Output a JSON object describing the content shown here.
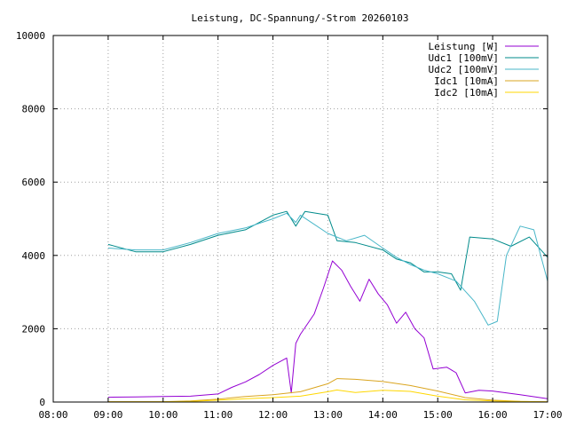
{
  "chart_data": {
    "type": "line",
    "title": "Leistung, DC-Spannung/-Strom 20260103",
    "xlabel": "",
    "ylabel": "",
    "x_range": [
      "08:00",
      "17:00"
    ],
    "ylim": [
      0,
      10000
    ],
    "x_ticks": [
      "08:00",
      "09:00",
      "10:00",
      "11:00",
      "12:00",
      "13:00",
      "14:00",
      "15:00",
      "16:00",
      "17:00"
    ],
    "y_ticks": [
      0,
      2000,
      4000,
      6000,
      8000,
      10000
    ],
    "grid": true,
    "legend_position": "top-right",
    "series": [
      {
        "name": "Leistung [W]",
        "color": "#9400d3",
        "points": [
          [
            "09:00",
            130
          ],
          [
            "09:30",
            140
          ],
          [
            "10:00",
            150
          ],
          [
            "10:30",
            160
          ],
          [
            "11:00",
            220
          ],
          [
            "11:15",
            400
          ],
          [
            "11:30",
            550
          ],
          [
            "11:45",
            750
          ],
          [
            "12:00",
            1000
          ],
          [
            "12:15",
            1200
          ],
          [
            "12:20",
            250
          ],
          [
            "12:25",
            1600
          ],
          [
            "12:30",
            1850
          ],
          [
            "12:45",
            2400
          ],
          [
            "12:55",
            3100
          ],
          [
            "13:05",
            3850
          ],
          [
            "13:15",
            3600
          ],
          [
            "13:25",
            3150
          ],
          [
            "13:35",
            2750
          ],
          [
            "13:45",
            3350
          ],
          [
            "13:55",
            2950
          ],
          [
            "14:05",
            2650
          ],
          [
            "14:15",
            2150
          ],
          [
            "14:25",
            2450
          ],
          [
            "14:35",
            2000
          ],
          [
            "14:45",
            1750
          ],
          [
            "14:55",
            900
          ],
          [
            "15:10",
            950
          ],
          [
            "15:20",
            800
          ],
          [
            "15:30",
            250
          ],
          [
            "15:45",
            320
          ],
          [
            "16:00",
            300
          ],
          [
            "16:30",
            200
          ],
          [
            "17:00",
            90
          ]
        ]
      },
      {
        "name": "Udc1 [100mV]",
        "color": "#008b8b",
        "points": [
          [
            "09:00",
            4300
          ],
          [
            "09:30",
            4100
          ],
          [
            "10:00",
            4100
          ],
          [
            "10:30",
            4300
          ],
          [
            "11:00",
            4550
          ],
          [
            "11:30",
            4700
          ],
          [
            "12:00",
            5100
          ],
          [
            "12:15",
            5200
          ],
          [
            "12:25",
            4800
          ],
          [
            "12:35",
            5200
          ],
          [
            "13:00",
            5100
          ],
          [
            "13:10",
            4400
          ],
          [
            "13:30",
            4350
          ],
          [
            "14:00",
            4150
          ],
          [
            "14:15",
            3900
          ],
          [
            "14:30",
            3800
          ],
          [
            "14:45",
            3550
          ],
          [
            "15:00",
            3550
          ],
          [
            "15:15",
            3500
          ],
          [
            "15:25",
            3050
          ],
          [
            "15:35",
            4500
          ],
          [
            "16:00",
            4450
          ],
          [
            "16:20",
            4250
          ],
          [
            "16:40",
            4500
          ],
          [
            "17:00",
            3950
          ]
        ]
      },
      {
        "name": "Udc2 [100mV]",
        "color": "#48b6c8",
        "points": [
          [
            "09:00",
            4200
          ],
          [
            "09:30",
            4150
          ],
          [
            "10:00",
            4150
          ],
          [
            "10:30",
            4350
          ],
          [
            "11:00",
            4600
          ],
          [
            "11:30",
            4750
          ],
          [
            "12:00",
            5000
          ],
          [
            "12:15",
            5150
          ],
          [
            "12:25",
            4900
          ],
          [
            "12:30",
            5100
          ],
          [
            "13:00",
            4600
          ],
          [
            "13:20",
            4400
          ],
          [
            "13:40",
            4550
          ],
          [
            "14:00",
            4200
          ],
          [
            "14:15",
            3950
          ],
          [
            "14:30",
            3750
          ],
          [
            "14:45",
            3600
          ],
          [
            "15:00",
            3500
          ],
          [
            "15:20",
            3300
          ],
          [
            "15:40",
            2750
          ],
          [
            "15:55",
            2100
          ],
          [
            "16:05",
            2200
          ],
          [
            "16:15",
            4000
          ],
          [
            "16:30",
            4800
          ],
          [
            "16:45",
            4700
          ],
          [
            "17:00",
            3300
          ]
        ]
      },
      {
        "name": "Idc1 [10mA]",
        "color": "#daa520",
        "points": [
          [
            "09:00",
            10
          ],
          [
            "10:00",
            10
          ],
          [
            "10:30",
            30
          ],
          [
            "11:00",
            80
          ],
          [
            "11:30",
            150
          ],
          [
            "12:00",
            200
          ],
          [
            "12:30",
            280
          ],
          [
            "13:00",
            500
          ],
          [
            "13:10",
            640
          ],
          [
            "13:30",
            620
          ],
          [
            "14:00",
            560
          ],
          [
            "14:30",
            450
          ],
          [
            "15:00",
            300
          ],
          [
            "15:30",
            120
          ],
          [
            "16:00",
            50
          ],
          [
            "16:30",
            20
          ],
          [
            "17:00",
            5
          ]
        ]
      },
      {
        "name": "Idc2 [10mA]",
        "color": "#ffd700",
        "points": [
          [
            "09:00",
            5
          ],
          [
            "10:00",
            5
          ],
          [
            "10:30",
            20
          ],
          [
            "11:00",
            50
          ],
          [
            "11:30",
            90
          ],
          [
            "12:00",
            120
          ],
          [
            "12:30",
            160
          ],
          [
            "13:00",
            280
          ],
          [
            "13:10",
            330
          ],
          [
            "13:30",
            260
          ],
          [
            "14:00",
            320
          ],
          [
            "14:30",
            290
          ],
          [
            "15:00",
            160
          ],
          [
            "15:30",
            60
          ],
          [
            "16:00",
            30
          ],
          [
            "16:30",
            15
          ],
          [
            "17:00",
            5
          ]
        ]
      }
    ]
  }
}
